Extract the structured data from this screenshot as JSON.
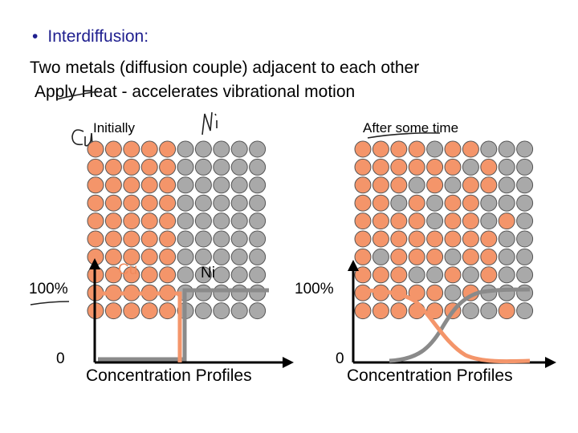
{
  "slide": {
    "bullet_title": "Interdiffusion:",
    "line_1": "Two metals (diffusion couple) adjacent to each other",
    "line_2": "Apply Heat  -  accelerates vibrational motion"
  },
  "left_panel": {
    "label": "Initially",
    "metal_a": "Cu",
    "metal_b": "Ni",
    "y_top": "100%",
    "y_bottom": "0",
    "caption": "Concentration Profiles"
  },
  "right_panel": {
    "label": "After some time",
    "y_top": "100%",
    "y_bottom": "0",
    "caption": "Concentration Profiles"
  },
  "handwriting": {
    "cu_note": "Cu",
    "ni_note": "Ni"
  },
  "colors": {
    "copper": "#f4956a",
    "nickel": "#a9a9a9",
    "atom_stroke": "#555555",
    "title_blue": "#1f1f8f",
    "cu_label": "#f08a5d",
    "curve_grey": "#8a8a8a"
  },
  "lattice": {
    "cols": 10,
    "rows": 10,
    "left_ni_mask": "0000011111",
    "right_ni_mask": [
      "0000100111",
      "0000001011",
      "0001010011",
      "0010100111",
      "0000100101",
      "0000000011",
      "0100010011",
      "0001101011",
      "0000010111",
      "0000001101"
    ]
  }
}
